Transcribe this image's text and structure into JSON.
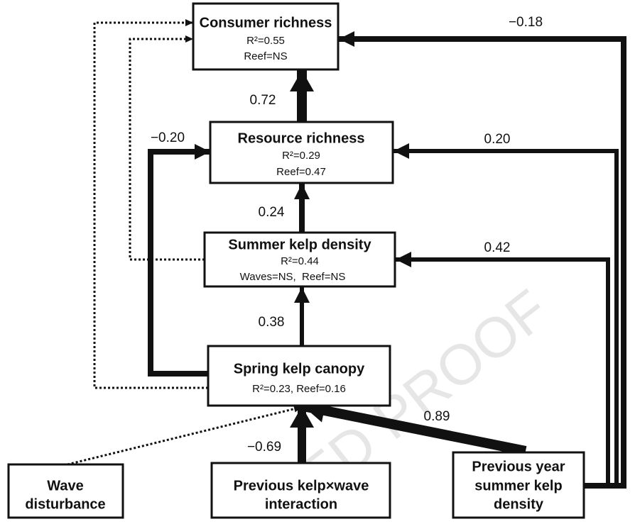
{
  "nodes": [
    {
      "label": "Consumer richness",
      "lines": [
        "R²=0.55",
        "Reef=NS"
      ]
    },
    {
      "label": "Resource richness",
      "lines": [
        "R²=0.29",
        "Reef=0.47"
      ]
    },
    {
      "label": "Summer kelp density",
      "lines": [
        "R²=0.44",
        "Waves=NS,  Reef=NS"
      ]
    },
    {
      "label": "Spring kelp canopy",
      "lines": [
        "R²=0.23, Reef=0.16"
      ]
    },
    {
      "label": [
        "Wave",
        "disturbance"
      ]
    },
    {
      "label": [
        "Previous kelp×wave",
        "interaction"
      ]
    },
    {
      "label": [
        "Previous year",
        "summer kelp",
        "density"
      ]
    }
  ],
  "edges": [
    {
      "label": "0.72"
    },
    {
      "label": "0.24"
    },
    {
      "label": "0.38"
    },
    {
      "label": "−0.20"
    },
    {
      "label": "−0.69"
    },
    {
      "label": "0.89"
    },
    {
      "label": "−0.18"
    },
    {
      "label": "0.20"
    },
    {
      "label": "0.42"
    }
  ],
  "watermark": "ED PROOF"
}
